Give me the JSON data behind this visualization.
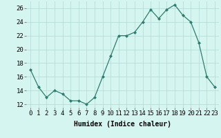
{
  "x": [
    0,
    1,
    2,
    3,
    4,
    5,
    6,
    7,
    8,
    9,
    10,
    11,
    12,
    13,
    14,
    15,
    16,
    17,
    18,
    19,
    20,
    21,
    22,
    23
  ],
  "y": [
    17.0,
    14.5,
    13.0,
    14.0,
    13.5,
    12.5,
    12.5,
    12.0,
    13.0,
    16.0,
    19.0,
    22.0,
    22.0,
    22.5,
    24.0,
    25.8,
    24.5,
    25.8,
    26.5,
    25.0,
    24.0,
    21.0,
    16.0,
    14.5
  ],
  "line_color": "#2e7d6e",
  "marker": "D",
  "marker_size": 2,
  "bg_color": "#d4f5f0",
  "grid_color": "#b8ddd8",
  "xlabel": "Humidex (Indice chaleur)",
  "ylim": [
    11.5,
    27.0
  ],
  "xlim": [
    -0.5,
    23.5
  ],
  "yticks": [
    12,
    14,
    16,
    18,
    20,
    22,
    24,
    26
  ],
  "xtick_labels": [
    "0",
    "1",
    "2",
    "3",
    "4",
    "5",
    "6",
    "7",
    "8",
    "9",
    "10",
    "11",
    "12",
    "13",
    "14",
    "15",
    "16",
    "17",
    "18",
    "19",
    "20",
    "21",
    "22",
    "23"
  ],
  "xlabel_fontsize": 7,
  "tick_fontsize": 6.5
}
